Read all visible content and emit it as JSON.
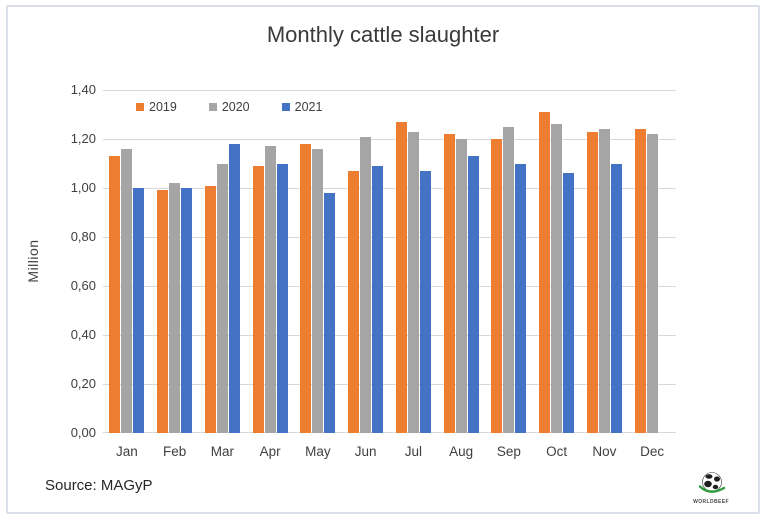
{
  "chart_data": {
    "type": "bar",
    "title": "Monthly cattle slaughter",
    "ylabel": "Million",
    "xlabel": "",
    "categories": [
      "Jan",
      "Feb",
      "Mar",
      "Apr",
      "May",
      "Jun",
      "Jul",
      "Aug",
      "Sep",
      "Oct",
      "Nov",
      "Dec"
    ],
    "series": [
      {
        "name": "2019",
        "color": "#ED7D31",
        "values": [
          1.13,
          0.99,
          1.01,
          1.09,
          1.18,
          1.07,
          1.27,
          1.22,
          1.2,
          1.31,
          1.23,
          1.24
        ]
      },
      {
        "name": "2020",
        "color": "#A5A5A5",
        "values": [
          1.16,
          1.02,
          1.1,
          1.17,
          1.16,
          1.21,
          1.23,
          1.2,
          1.25,
          1.26,
          1.24,
          1.22
        ]
      },
      {
        "name": "2021",
        "color": "#4472C4",
        "values": [
          1.0,
          1.0,
          1.18,
          1.1,
          0.98,
          1.09,
          1.07,
          1.13,
          1.1,
          1.06,
          1.1,
          null
        ]
      }
    ],
    "ylim": [
      0,
      1.4
    ],
    "ytick_step": 0.2,
    "ytick_labels": [
      "0,00",
      "0,20",
      "0,40",
      "0,60",
      "0,80",
      "1,00",
      "1,20",
      "1,40"
    ],
    "grid": true,
    "grid_color": "#d9d9d9",
    "legend_position": "top-left-inside",
    "number_format": "comma-decimal"
  },
  "footer": {
    "source_label": "Source: MAGyP"
  },
  "logo": {
    "text": "WORLDBEEF",
    "globe_color": "#1e1e1e",
    "swoosh_color": "#2e9b3e"
  },
  "colors": {
    "frame_border": "#dadfe9",
    "title_text": "#3a3a3a",
    "axis_text": "#404040"
  }
}
